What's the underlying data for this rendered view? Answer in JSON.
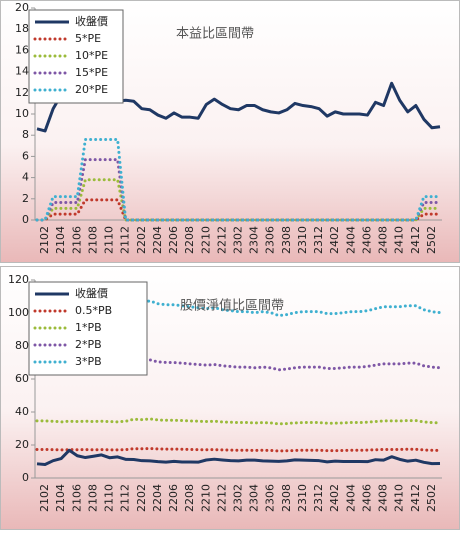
{
  "chart_data": [
    {
      "type": "line",
      "title": "本益比區間帶",
      "legend": "upper left",
      "categories": [
        null,
        "2102",
        null,
        "2104",
        null,
        "2106",
        null,
        "2108",
        null,
        "2110",
        null,
        "2112",
        null,
        "2202",
        null,
        "2204",
        null,
        "2206",
        null,
        "2208",
        null,
        "2210",
        null,
        "2212",
        null,
        "2302",
        null,
        "2304",
        null,
        "2306",
        null,
        "2308",
        null,
        "2310",
        null,
        "2312",
        null,
        "2402",
        null,
        "2404",
        null,
        "2406",
        null,
        "2408",
        null,
        "2410",
        null,
        "2412",
        null,
        "2502",
        null
      ],
      "ylim": [
        0,
        20
      ],
      "yticks": [
        0,
        2,
        4,
        6,
        8,
        10,
        12,
        14,
        16,
        18,
        20
      ],
      "series": [
        {
          "name": "收盤價",
          "color": "#1f3864",
          "style": "solid",
          "values": [
            8.6,
            8.4,
            10.5,
            11.8,
            12.0,
            12.2,
            12.0,
            11.8,
            11.6,
            11.4,
            11.2,
            11.3,
            11.2,
            10.5,
            10.4,
            9.9,
            9.6,
            10.1,
            9.7,
            9.7,
            9.6,
            10.9,
            11.4,
            10.9,
            10.5,
            10.4,
            10.8,
            10.8,
            10.4,
            10.2,
            10.1,
            10.4,
            11.0,
            10.8,
            10.7,
            10.5,
            9.8,
            10.2,
            10.0,
            10.0,
            10.0,
            9.9,
            11.1,
            10.8,
            12.9,
            11.3,
            10.2,
            10.8,
            9.5,
            8.7,
            8.8
          ]
        },
        {
          "name": "5*PE",
          "color": "#c0392b",
          "style": "dotted",
          "values": [
            0,
            0,
            0.55,
            0.55,
            0.55,
            0.55,
            1.9,
            1.9,
            1.9,
            1.9,
            1.9,
            0,
            0,
            0,
            0,
            0,
            0,
            0,
            0,
            0,
            0,
            0,
            0,
            0,
            0,
            0,
            0,
            0,
            0,
            0,
            0,
            0,
            0,
            0,
            0,
            0,
            0,
            0,
            0,
            0,
            0,
            0,
            0,
            0,
            0,
            0,
            0,
            0,
            0.55,
            0.55,
            0.55
          ]
        },
        {
          "name": "10*PE",
          "color": "#9bbb3b",
          "style": "dotted",
          "values": [
            0,
            0,
            1.1,
            1.1,
            1.1,
            1.1,
            3.8,
            3.8,
            3.8,
            3.8,
            3.8,
            0,
            0,
            0,
            0,
            0,
            0,
            0,
            0,
            0,
            0,
            0,
            0,
            0,
            0,
            0,
            0,
            0,
            0,
            0,
            0,
            0,
            0,
            0,
            0,
            0,
            0,
            0,
            0,
            0,
            0,
            0,
            0,
            0,
            0,
            0,
            0,
            0,
            1.1,
            1.1,
            1.1
          ]
        },
        {
          "name": "15*PE",
          "color": "#7e57a6",
          "style": "dotted",
          "values": [
            0,
            0,
            1.65,
            1.65,
            1.65,
            1.65,
            5.7,
            5.7,
            5.7,
            5.7,
            5.7,
            0,
            0,
            0,
            0,
            0,
            0,
            0,
            0,
            0,
            0,
            0,
            0,
            0,
            0,
            0,
            0,
            0,
            0,
            0,
            0,
            0,
            0,
            0,
            0,
            0,
            0,
            0,
            0,
            0,
            0,
            0,
            0,
            0,
            0,
            0,
            0,
            0,
            1.65,
            1.65,
            1.65
          ]
        },
        {
          "name": "20*PE",
          "color": "#3fb0d0",
          "style": "dotted",
          "values": [
            0,
            0,
            2.2,
            2.2,
            2.2,
            2.2,
            7.6,
            7.6,
            7.6,
            7.6,
            7.6,
            0,
            0,
            0,
            0,
            0,
            0,
            0,
            0,
            0,
            0,
            0,
            0,
            0,
            0,
            0,
            0,
            0,
            0,
            0,
            0,
            0,
            0,
            0,
            0,
            0,
            0,
            0,
            0,
            0,
            0,
            0,
            0,
            0,
            0,
            0,
            0,
            0,
            2.2,
            2.2,
            2.2
          ]
        }
      ]
    },
    {
      "type": "line",
      "title": "股價淨值比區間帶",
      "legend": "upper left",
      "categories": [
        null,
        "2102",
        null,
        "2104",
        null,
        "2106",
        null,
        "2108",
        null,
        "2110",
        null,
        "2112",
        null,
        "2202",
        null,
        "2204",
        null,
        "2206",
        null,
        "2208",
        null,
        "2210",
        null,
        "2212",
        null,
        "2302",
        null,
        "2304",
        null,
        "2306",
        null,
        "2308",
        null,
        "2310",
        null,
        "2312",
        null,
        "2402",
        null,
        "2404",
        null,
        "2406",
        null,
        "2408",
        null,
        "2410",
        null,
        "2412",
        null,
        "2502",
        null
      ],
      "ylim": [
        0,
        120
      ],
      "yticks": [
        0,
        20,
        40,
        60,
        80,
        100,
        120
      ],
      "series": [
        {
          "name": "收盤價",
          "color": "#1f3864",
          "style": "solid",
          "values": [
            8.6,
            8.2,
            10.5,
            11.8,
            16.8,
            13.5,
            12.4,
            13.2,
            14.0,
            12.3,
            12.8,
            11.3,
            11.2,
            10.5,
            10.4,
            9.9,
            9.6,
            10.1,
            9.7,
            9.7,
            9.6,
            10.9,
            11.4,
            10.9,
            10.5,
            10.4,
            10.8,
            10.8,
            10.4,
            10.2,
            10.1,
            10.4,
            11.0,
            10.8,
            10.7,
            10.5,
            9.8,
            10.2,
            10.0,
            10.0,
            10.0,
            9.9,
            11.1,
            10.8,
            12.9,
            11.3,
            10.2,
            10.8,
            9.5,
            8.7,
            8.8
          ]
        },
        {
          "name": "0.5*PB",
          "color": "#c0392b",
          "style": "dotted",
          "values": [
            17.3,
            17.3,
            17.2,
            17.0,
            17.2,
            17.1,
            17.2,
            17.1,
            17.2,
            17.1,
            17.0,
            17.2,
            17.8,
            17.7,
            17.9,
            17.6,
            17.5,
            17.5,
            17.4,
            17.3,
            17.2,
            17.1,
            17.2,
            17.0,
            16.9,
            16.8,
            16.8,
            16.7,
            16.8,
            16.7,
            16.4,
            16.5,
            16.7,
            16.8,
            16.8,
            16.8,
            16.6,
            16.6,
            16.7,
            16.8,
            16.8,
            16.9,
            17.1,
            17.3,
            17.3,
            17.3,
            17.4,
            17.4,
            17.0,
            16.8,
            16.7
          ]
        },
        {
          "name": "1*PB",
          "color": "#9bbb3b",
          "style": "dotted",
          "values": [
            34.6,
            34.6,
            34.4,
            34.0,
            34.4,
            34.2,
            34.4,
            34.2,
            34.4,
            34.2,
            34.0,
            34.4,
            35.6,
            35.4,
            35.8,
            35.2,
            35.0,
            35.0,
            34.8,
            34.6,
            34.4,
            34.2,
            34.4,
            34.0,
            33.8,
            33.6,
            33.6,
            33.4,
            33.6,
            33.4,
            32.8,
            33.0,
            33.4,
            33.6,
            33.6,
            33.6,
            33.2,
            33.2,
            33.4,
            33.6,
            33.6,
            33.8,
            34.2,
            34.6,
            34.6,
            34.6,
            34.8,
            34.8,
            34.0,
            33.6,
            33.4
          ]
        },
        {
          "name": "2*PB",
          "color": "#7e57a6",
          "style": "dotted",
          "values": [
            69.2,
            69.2,
            68.8,
            68.0,
            68.8,
            68.4,
            68.8,
            68.4,
            68.8,
            68.4,
            68.0,
            68.8,
            71.2,
            70.8,
            71.6,
            70.4,
            70.0,
            70.0,
            69.6,
            69.2,
            68.8,
            68.4,
            68.8,
            68.0,
            67.6,
            67.2,
            67.2,
            66.8,
            67.2,
            66.8,
            65.6,
            66.0,
            66.8,
            67.2,
            67.2,
            67.2,
            66.4,
            66.4,
            66.8,
            67.2,
            67.2,
            67.6,
            68.4,
            69.2,
            69.2,
            69.2,
            69.6,
            69.6,
            68.0,
            67.2,
            66.8
          ]
        },
        {
          "name": "3*PB",
          "color": "#3fb0d0",
          "style": "dotted",
          "values": [
            103.8,
            103.8,
            103.2,
            102.0,
            103.2,
            102.6,
            103.2,
            102.6,
            103.2,
            102.6,
            102.0,
            103.2,
            106.8,
            106.2,
            107.4,
            105.6,
            105.0,
            105.0,
            104.4,
            103.8,
            103.2,
            102.6,
            103.2,
            102.0,
            101.4,
            100.8,
            100.8,
            100.2,
            100.8,
            100.2,
            98.4,
            99.0,
            100.2,
            100.8,
            100.8,
            100.8,
            99.6,
            99.6,
            100.2,
            100.8,
            100.8,
            101.4,
            102.6,
            103.8,
            103.8,
            103.8,
            104.4,
            104.4,
            102.0,
            100.8,
            100.2
          ]
        }
      ]
    }
  ]
}
